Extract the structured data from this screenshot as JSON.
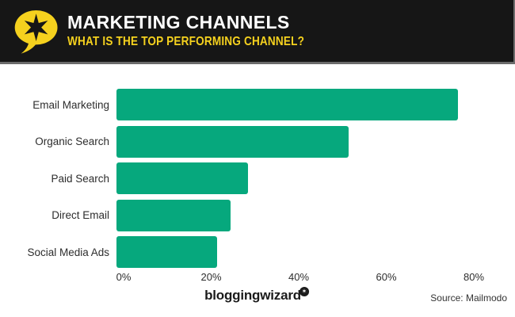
{
  "header": {
    "title": "MARKETING CHANNELS",
    "subtitle": "WHAT IS THE TOP PERFORMING CHANNEL?",
    "logo_icon": "speech-bubble-star-icon",
    "colors": {
      "header_background": "#161616",
      "title_text": "#ffffff",
      "subtitle_text": "#f5d11e",
      "logo_bubble": "#f5d11e",
      "logo_star": "#161616",
      "header_edge": "#6b6b6b"
    }
  },
  "chart_data": {
    "type": "bar",
    "orientation": "horizontal",
    "categories": [
      "Email Marketing",
      "Organic Search",
      "Paid Search",
      "Direct Email",
      "Social Media Ads"
    ],
    "values": [
      78,
      53,
      30,
      26,
      23
    ],
    "unit": "%",
    "x_tick_values": [
      0,
      20,
      40,
      60,
      80
    ],
    "x_tick_labels": [
      "0%",
      "20%",
      "40%",
      "60%",
      "80%"
    ],
    "xlim": [
      0,
      85
    ],
    "bar_color": "#06a87d",
    "label_color": "#2d2d2d",
    "grid": false,
    "value_labels_shown": false,
    "title": "",
    "xlabel": "",
    "ylabel": ""
  },
  "footer": {
    "brand": "bloggingwizard",
    "brand_badge_icon": "star-badge-icon",
    "brand_badge_glyph": "✶",
    "source": "Source: Mailmodo"
  }
}
